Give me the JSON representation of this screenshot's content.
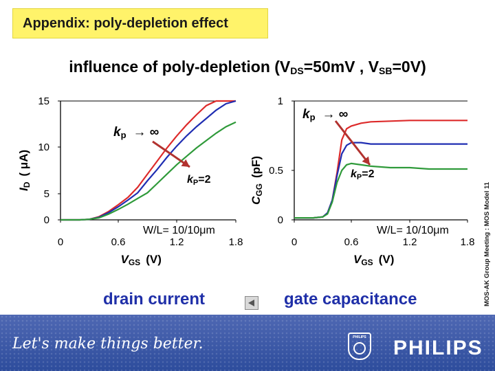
{
  "slide": {
    "title": "Appendix: poly-depletion effect",
    "headline": {
      "main": "influence of poly-depletion (V",
      "sub1": "DS",
      "mid": "=50mV , V",
      "sub2": "SB",
      "tail": "=0V)"
    },
    "side_note": "MOS-AK Group Meeting : MOS Model 11",
    "nav_icon": "back-arrow-icon"
  },
  "footer": {
    "tagline": "Let's make things better.",
    "brand": "PHILIPS",
    "shield_text": "PHILIPS"
  },
  "colors": {
    "series_inf": "#dd2a2a",
    "series_mid": "#1f2db2",
    "series_kp2": "#2f9a3a",
    "arrow": "#b2322f",
    "caption": "#1f2fa8",
    "footer": "#3a56a6",
    "title_box": "#fff36a"
  },
  "chart_data": [
    {
      "type": "line",
      "caption": "drain current",
      "xlabel": {
        "symbol": "V",
        "sub": "GS",
        "unit": "(V)"
      },
      "ylabel": {
        "symbol": "I",
        "sub": "D",
        "unit": "( μA)"
      },
      "xlim": [
        0,
        1.8
      ],
      "ylim": [
        0,
        15
      ],
      "xticks": [
        "0",
        "0.6",
        "1.2",
        "1.8"
      ],
      "yticks": [
        "0",
        "5",
        "10",
        "15"
      ],
      "annotations": {
        "kp_inf": {
          "symbol": "k",
          "sub": "p",
          "rel": "→ ∞"
        },
        "kp2": {
          "symbol": "k",
          "sub": "P",
          "rel": "=2"
        },
        "device": "W/L= 10/10μm"
      },
      "series": [
        {
          "color_key": "series_inf",
          "x": [
            0,
            0.2,
            0.3,
            0.4,
            0.5,
            0.6,
            0.7,
            0.8,
            0.9,
            1.0,
            1.1,
            1.2,
            1.3,
            1.4,
            1.5,
            1.6,
            1.8
          ],
          "y": [
            0,
            0,
            0.1,
            0.6,
            1.6,
            2.9,
            4.3,
            5.7,
            7.1,
            8.5,
            9.9,
            11.2,
            12.4,
            13.5,
            14.5,
            15.2,
            15.6
          ]
        },
        {
          "color_key": "series_mid",
          "x": [
            0,
            0.2,
            0.3,
            0.4,
            0.5,
            0.6,
            0.7,
            0.8,
            0.9,
            1.0,
            1.1,
            1.2,
            1.3,
            1.4,
            1.5,
            1.6,
            1.7,
            1.8
          ],
          "y": [
            0,
            0,
            0.1,
            0.5,
            1.4,
            2.5,
            3.8,
            5.1,
            6.4,
            7.6,
            8.9,
            10.1,
            11.2,
            12.2,
            13.1,
            14.0,
            14.7,
            15.3
          ]
        },
        {
          "color_key": "series_kp2",
          "x": [
            0,
            0.2,
            0.3,
            0.4,
            0.5,
            0.6,
            0.7,
            0.8,
            0.9,
            1.0,
            1.1,
            1.2,
            1.3,
            1.4,
            1.5,
            1.6,
            1.7,
            1.8
          ],
          "y": [
            0,
            0,
            0.1,
            0.4,
            1.1,
            2.0,
            3.0,
            4.1,
            5.1,
            6.1,
            7.1,
            8.1,
            9.0,
            9.9,
            10.7,
            11.5,
            12.2,
            12.7
          ]
        }
      ]
    },
    {
      "type": "line",
      "caption": "gate capacitance",
      "xlabel": {
        "symbol": "V",
        "sub": "GS",
        "unit": "(V)"
      },
      "ylabel": {
        "symbol": "C",
        "sub": "GG",
        "unit": "(pF)"
      },
      "xlim": [
        0,
        1.8
      ],
      "ylim": [
        0,
        1
      ],
      "xticks": [
        "0",
        "0.6",
        "1.2",
        "1.8"
      ],
      "yticks": [
        "0",
        "0.5",
        "1"
      ],
      "annotations": {
        "kp_inf": {
          "symbol": "k",
          "sub": "p",
          "rel": "→ ∞"
        },
        "kp2": {
          "symbol": "k",
          "sub": "P",
          "rel": "=2"
        },
        "device": "W/L= 10/10μm"
      },
      "series": [
        {
          "color_key": "series_inf",
          "x": [
            0,
            0.2,
            0.3,
            0.35,
            0.4,
            0.45,
            0.5,
            0.55,
            0.6,
            0.7,
            0.8,
            1.0,
            1.2,
            1.4,
            1.6,
            1.8
          ],
          "y": [
            0.02,
            0.02,
            0.03,
            0.07,
            0.2,
            0.48,
            0.72,
            0.8,
            0.82,
            0.84,
            0.85,
            0.855,
            0.86,
            0.86,
            0.86,
            0.86
          ]
        },
        {
          "color_key": "series_mid",
          "x": [
            0,
            0.2,
            0.3,
            0.35,
            0.4,
            0.45,
            0.5,
            0.55,
            0.6,
            0.7,
            0.8,
            1.0,
            1.2,
            1.4,
            1.6,
            1.8
          ],
          "y": [
            0.02,
            0.02,
            0.03,
            0.07,
            0.2,
            0.45,
            0.62,
            0.68,
            0.7,
            0.7,
            0.69,
            0.69,
            0.69,
            0.69,
            0.69,
            0.69
          ]
        },
        {
          "color_key": "series_kp2",
          "x": [
            0,
            0.2,
            0.3,
            0.35,
            0.4,
            0.45,
            0.5,
            0.55,
            0.6,
            0.7,
            0.8,
            1.0,
            1.2,
            1.4,
            1.6,
            1.8
          ],
          "y": [
            0.02,
            0.02,
            0.03,
            0.06,
            0.18,
            0.38,
            0.5,
            0.54,
            0.55,
            0.54,
            0.53,
            0.52,
            0.52,
            0.51,
            0.51,
            0.51
          ]
        }
      ]
    }
  ]
}
